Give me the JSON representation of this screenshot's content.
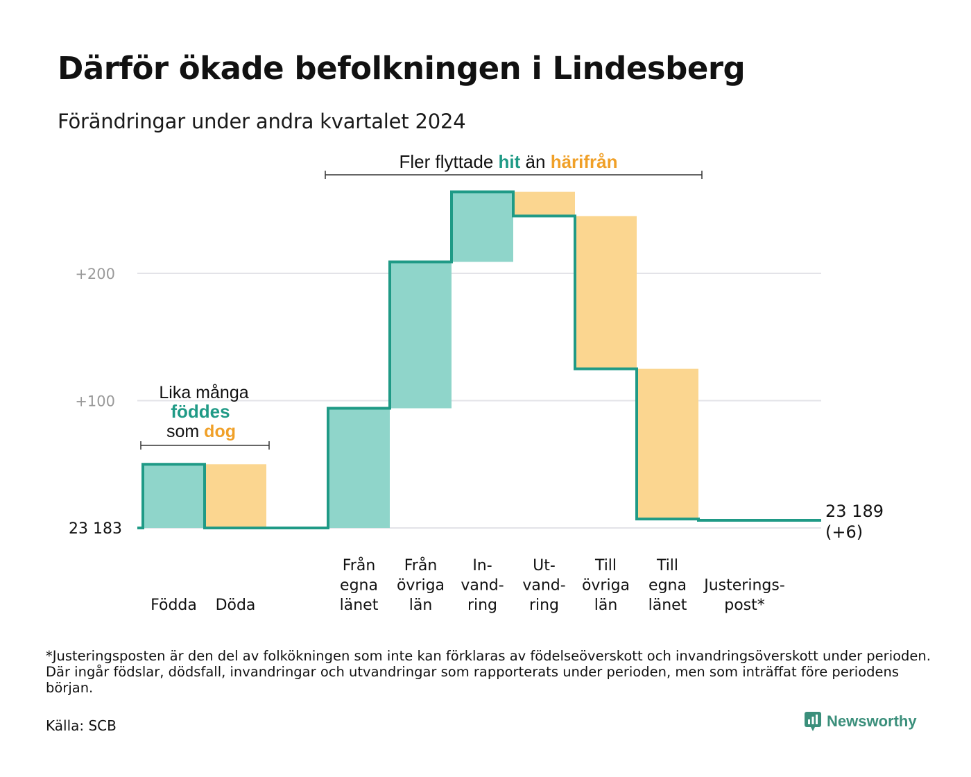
{
  "title": "Därför ökade befolkningen i Lindesberg",
  "subtitle": "Förändringar under andra kvartalet 2024",
  "colors": {
    "teal": "#1f9a86",
    "teal_fill": "#8fd5ca",
    "orange": "#f0a028",
    "orange_fill": "#fbd690",
    "grid": "#e3e3e8",
    "tick": "#9a9a9a"
  },
  "chart_data": {
    "type": "waterfall",
    "start": {
      "label": "23  183",
      "value": 0
    },
    "end": {
      "label_line1": "23 189",
      "label_line2": "(+6)",
      "value": 6
    },
    "ylim": [
      0,
      264
    ],
    "yticks": [
      {
        "value": 100,
        "label": "+100"
      },
      {
        "value": 200,
        "label": "+200"
      }
    ],
    "steps": [
      {
        "name": "fodda",
        "label": [
          "Födda"
        ],
        "change": 50,
        "kind": "in"
      },
      {
        "name": "doda",
        "label": [
          "Döda"
        ],
        "change": -50,
        "kind": "out"
      },
      {
        "name": "gap",
        "label": [],
        "change": 0,
        "kind": "none"
      },
      {
        "name": "fran-egna-lanet",
        "label": [
          "Från",
          "egna",
          "länet"
        ],
        "change": 94,
        "kind": "in"
      },
      {
        "name": "fran-ovriga-lan",
        "label": [
          "Från",
          "övriga",
          "län"
        ],
        "change": 115,
        "kind": "in"
      },
      {
        "name": "invandring",
        "label": [
          "In-",
          "vand-",
          "ring"
        ],
        "change": 55,
        "kind": "in"
      },
      {
        "name": "utvandring",
        "label": [
          "Ut-",
          "vand-",
          "ring"
        ],
        "change": -19,
        "kind": "out"
      },
      {
        "name": "till-ovriga-lan",
        "label": [
          "Till",
          "övriga",
          "län"
        ],
        "change": -120,
        "kind": "out"
      },
      {
        "name": "till-egna-lanet",
        "label": [
          "Till",
          "egna",
          "länet"
        ],
        "change": -118,
        "kind": "out"
      },
      {
        "name": "justeringspost",
        "label": [
          "Justerings-",
          "post*"
        ],
        "change": -1,
        "kind": "adjust"
      }
    ],
    "annotations": {
      "births_deaths": {
        "line1": "Lika många",
        "line2": "föddes",
        "line3a": "som",
        "line3b": "dog"
      },
      "migration": {
        "part1": "Fler flyttade",
        "part2": "hit",
        "part3": "än",
        "part4": "härifrån"
      }
    }
  },
  "footnote": "*Justeringsposten är den del av folkökningen som inte kan förklaras av födelseöverskott och invandringsöverskott under perioden. Där ingår födslar, dödsfall, invandringar och utvandringar som rapporterats under perioden, men som inträffat före periodens början.",
  "source": "Källa: SCB",
  "brand": {
    "name": "Newsworthy",
    "icon": "newsworthy-logo-icon"
  }
}
